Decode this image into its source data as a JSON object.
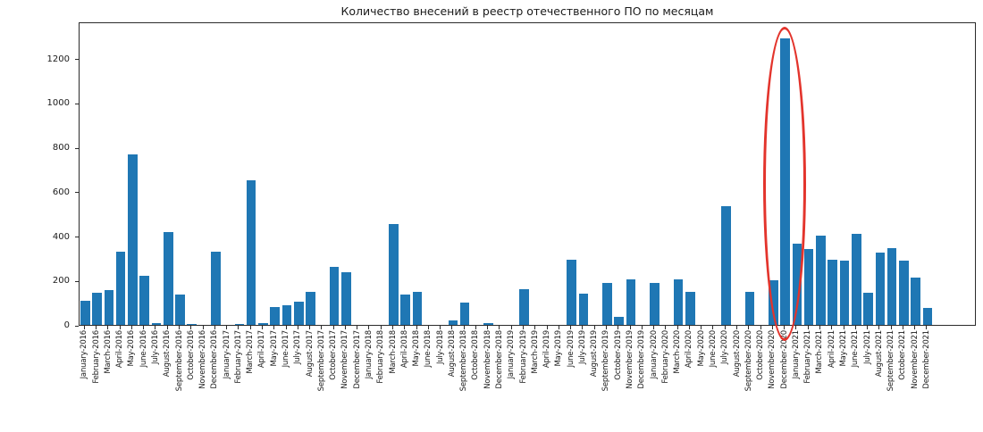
{
  "chart_data": {
    "type": "bar",
    "title": "Количество внесений в реестр отечественного ПО по месяцам",
    "categories": [
      "January-2016",
      "February-2016",
      "March-2016",
      "April-2016",
      "May-2016",
      "June-2016",
      "July-2016",
      "August-2016",
      "September-2016",
      "October-2016",
      "November-2016",
      "December-2016",
      "January-2017",
      "February-2017",
      "March-2017",
      "April-2017",
      "May-2017",
      "June-2017",
      "July-2017",
      "August-2017",
      "September-2017",
      "October-2017",
      "November-2017",
      "December-2017",
      "January-2018",
      "February-2018",
      "March-2018",
      "April-2018",
      "May-2018",
      "June-2018",
      "July-2018",
      "August-2018",
      "September-2018",
      "October-2018",
      "November-2018",
      "December-2018",
      "January-2019",
      "February-2019",
      "March-2019",
      "April-2019",
      "May-2019",
      "June-2019",
      "July-2019",
      "August-2019",
      "September-2019",
      "October-2019",
      "November-2019",
      "December-2019",
      "January-2020",
      "February-2020",
      "March-2020",
      "April-2020",
      "May-2020",
      "June-2020",
      "July-2020",
      "August-2020",
      "September-2020",
      "October-2020",
      "November-2020",
      "December-2020",
      "January-2021",
      "February-2021",
      "March-2021",
      "April-2021",
      "May-2021",
      "June-2021",
      "July-2021",
      "August-2021",
      "September-2021",
      "October-2021",
      "November-2021",
      "December-2021"
    ],
    "values": [
      110,
      145,
      155,
      330,
      770,
      222,
      8,
      420,
      135,
      5,
      0,
      330,
      0,
      5,
      650,
      10,
      82,
      88,
      103,
      150,
      0,
      262,
      237,
      0,
      0,
      0,
      455,
      135,
      150,
      0,
      0,
      20,
      100,
      0,
      10,
      0,
      0,
      160,
      0,
      0,
      0,
      293,
      142,
      0,
      188,
      35,
      205,
      0,
      190,
      0,
      205,
      148,
      0,
      0,
      534,
      0,
      150,
      0,
      202,
      1290,
      366,
      340,
      402,
      293,
      288,
      409,
      143,
      324,
      347,
      291,
      213,
      75
    ],
    "xlabel": "",
    "ylabel": "",
    "ylim": [
      0,
      1367
    ],
    "yticks": [
      0,
      200,
      400,
      600,
      800,
      1000,
      1200
    ],
    "grid": false,
    "legend": "none",
    "bar_color": "#1f77b4",
    "axis_color": "#2b2b2b",
    "annotation": {
      "type": "ellipse",
      "around_category": "December-2020",
      "around_index": 59,
      "color": "#e3342c"
    }
  }
}
